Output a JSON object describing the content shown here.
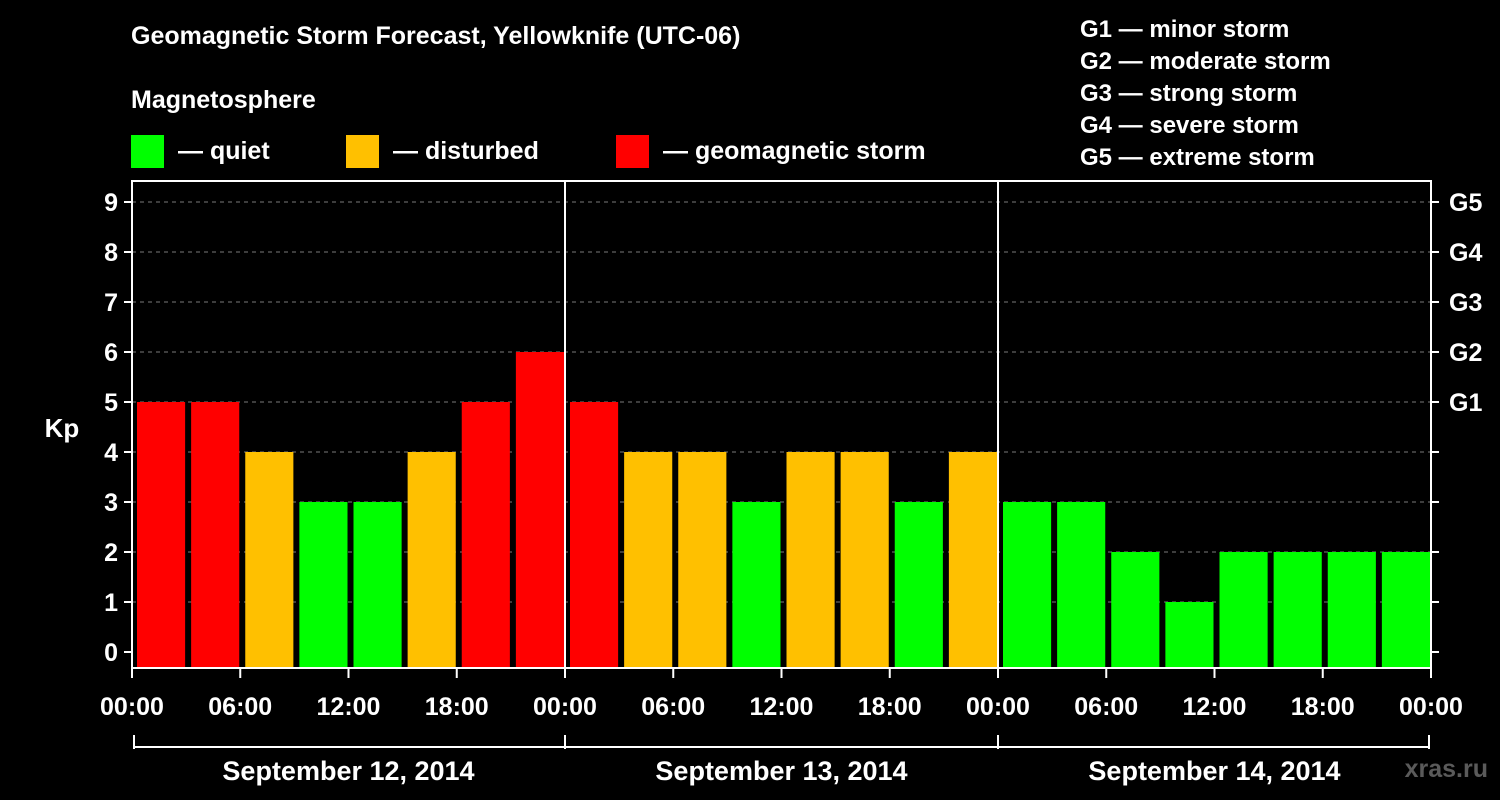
{
  "header": {
    "title": "Geomagnetic Storm Forecast, Yellowknife (UTC-06)",
    "subtitle": "Magnetosphere"
  },
  "legend": [
    {
      "label": "— quiet",
      "color": "#00ff00"
    },
    {
      "label": "— disturbed",
      "color": "#ffc000"
    },
    {
      "label": "— geomagnetic storm",
      "color": "#ff0000"
    }
  ],
  "storm_scale": [
    "G1 — minor storm",
    "G2 — moderate storm",
    "G3 — strong storm",
    "G4 — severe storm",
    "G5 — extreme storm"
  ],
  "watermark": "xras.ru",
  "chart_data": {
    "type": "bar",
    "title": "Geomagnetic Storm Forecast, Yellowknife (UTC-06)",
    "ylabel": "Kp",
    "ylim": [
      0,
      9
    ],
    "y_ticks": [
      "0",
      "1",
      "2",
      "3",
      "4",
      "5",
      "6",
      "7",
      "8",
      "9"
    ],
    "right_ticks": [
      {
        "kp": 5,
        "label": "G1"
      },
      {
        "kp": 6,
        "label": "G2"
      },
      {
        "kp": 7,
        "label": "G3"
      },
      {
        "kp": 8,
        "label": "G4"
      },
      {
        "kp": 9,
        "label": "G5"
      }
    ],
    "x_tick_labels": [
      "00:00",
      "06:00",
      "12:00",
      "18:00",
      "00:00",
      "06:00",
      "12:00",
      "18:00",
      "00:00",
      "06:00",
      "12:00",
      "18:00",
      "00:00"
    ],
    "days": [
      "September 12, 2014",
      "September 13, 2014",
      "September 14, 2014"
    ],
    "values": [
      5,
      5,
      4,
      3,
      3,
      4,
      5,
      6,
      5,
      4,
      4,
      3,
      4,
      4,
      3,
      4,
      3,
      3,
      2,
      1,
      2,
      2,
      2,
      2
    ],
    "color_rules": {
      "quiet_max": 3,
      "disturbed_max": 4
    },
    "colors": {
      "quiet": "#00ff00",
      "disturbed": "#ffc000",
      "storm": "#ff0000"
    },
    "grid": "dashed horizontal",
    "legend_position": "top"
  }
}
